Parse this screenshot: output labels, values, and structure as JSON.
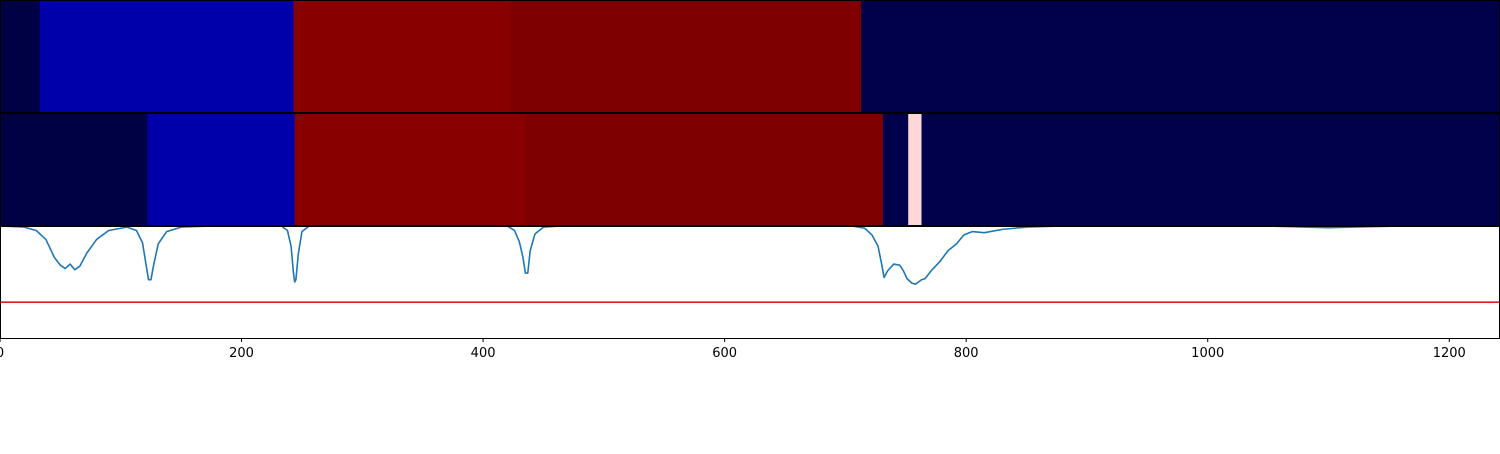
{
  "chart_data": [
    {
      "type": "heatmap",
      "row": "top",
      "segments": [
        {
          "start": 0,
          "end": 33,
          "color": "#000044"
        },
        {
          "start": 33,
          "end": 243,
          "color": "#0000aa"
        },
        {
          "start": 243,
          "end": 423,
          "color": "#880000"
        },
        {
          "start": 423,
          "end": 713,
          "color": "#7f0000"
        },
        {
          "start": 713,
          "end": 1242,
          "color": "#00004b"
        }
      ]
    },
    {
      "type": "heatmap",
      "row": "middle",
      "segments": [
        {
          "start": 0,
          "end": 122,
          "color": "#000044"
        },
        {
          "start": 122,
          "end": 244,
          "color": "#0000aa"
        },
        {
          "start": 244,
          "end": 435,
          "color": "#880000"
        },
        {
          "start": 435,
          "end": 731,
          "color": "#7f0000"
        },
        {
          "start": 731,
          "end": 752,
          "color": "#00004b"
        },
        {
          "start": 752,
          "end": 763,
          "color": "#ffd7d7"
        },
        {
          "start": 763,
          "end": 1242,
          "color": "#00004b"
        }
      ]
    },
    {
      "type": "line",
      "row": "bottom",
      "xlim": [
        0,
        1242
      ],
      "ylim": [
        0,
        1
      ],
      "threshold": {
        "value": 0.32,
        "color": "#e31a1c"
      },
      "series": [
        {
          "color": "#1f77b4",
          "points": [
            [
              0,
              1.0
            ],
            [
              20,
              0.99
            ],
            [
              30,
              0.96
            ],
            [
              38,
              0.88
            ],
            [
              45,
              0.72
            ],
            [
              50,
              0.65
            ],
            [
              54,
              0.62
            ],
            [
              58,
              0.66
            ],
            [
              62,
              0.61
            ],
            [
              66,
              0.64
            ],
            [
              72,
              0.76
            ],
            [
              80,
              0.88
            ],
            [
              90,
              0.96
            ],
            [
              105,
              0.99
            ],
            [
              113,
              0.96
            ],
            [
              118,
              0.85
            ],
            [
              121,
              0.65
            ],
            [
              123,
              0.52
            ],
            [
              125,
              0.52
            ],
            [
              127,
              0.64
            ],
            [
              131,
              0.84
            ],
            [
              138,
              0.95
            ],
            [
              150,
              0.99
            ],
            [
              175,
              1.0
            ],
            [
              233,
              1.0
            ],
            [
              238,
              0.96
            ],
            [
              241,
              0.82
            ],
            [
              243,
              0.58
            ],
            [
              244,
              0.5
            ],
            [
              245,
              0.52
            ],
            [
              247,
              0.75
            ],
            [
              250,
              0.95
            ],
            [
              256,
              1.0
            ],
            [
              420,
              1.0
            ],
            [
              426,
              0.96
            ],
            [
              430,
              0.86
            ],
            [
              433,
              0.72
            ],
            [
              435,
              0.58
            ],
            [
              437,
              0.58
            ],
            [
              439,
              0.78
            ],
            [
              443,
              0.93
            ],
            [
              450,
              0.99
            ],
            [
              465,
              1.0
            ],
            [
              705,
              1.0
            ],
            [
              716,
              0.98
            ],
            [
              722,
              0.92
            ],
            [
              727,
              0.82
            ],
            [
              730,
              0.66
            ],
            [
              732,
              0.54
            ],
            [
              735,
              0.6
            ],
            [
              740,
              0.66
            ],
            [
              745,
              0.65
            ],
            [
              748,
              0.6
            ],
            [
              751,
              0.53
            ],
            [
              755,
              0.49
            ],
            [
              758,
              0.48
            ],
            [
              763,
              0.52
            ],
            [
              766,
              0.53
            ],
            [
              771,
              0.6
            ],
            [
              778,
              0.68
            ],
            [
              785,
              0.78
            ],
            [
              792,
              0.84
            ],
            [
              798,
              0.92
            ],
            [
              805,
              0.95
            ],
            [
              815,
              0.94
            ],
            [
              830,
              0.97
            ],
            [
              850,
              0.99
            ],
            [
              880,
              1.0
            ],
            [
              1050,
              1.0
            ],
            [
              1080,
              0.99
            ],
            [
              1100,
              0.985
            ],
            [
              1120,
              0.99
            ],
            [
              1160,
              1.0
            ],
            [
              1242,
              1.0
            ]
          ]
        }
      ]
    }
  ],
  "axis": {
    "xlim": [
      0,
      1242
    ],
    "ticks": [
      "0",
      "200",
      "400",
      "600",
      "800",
      "1000",
      "1200"
    ]
  }
}
